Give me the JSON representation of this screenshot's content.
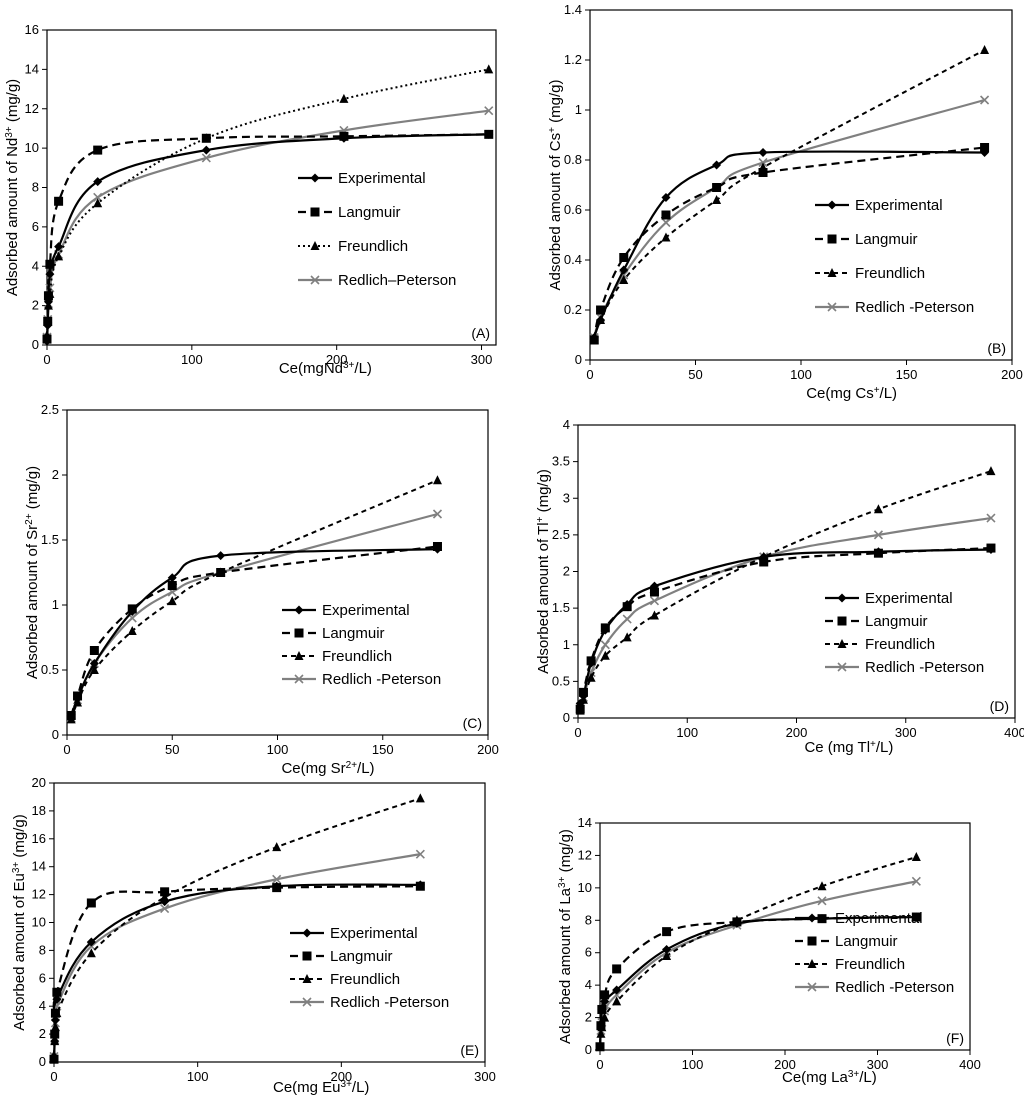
{
  "colors": {
    "experimental": "#000000",
    "langmuir": "#000000",
    "freundlich": "#000000",
    "redlich": "#808080"
  },
  "legend": [
    "Experimental",
    "Langmuir",
    "Freundlich",
    "Redlich–Peterson"
  ],
  "chart_data": [
    {
      "type": "line",
      "panel_label": "(A)",
      "xlabel": "Ce(mgNd3+/L)",
      "ylabel": "Adsorbed amount of Nd3+  (mg/g)",
      "xlim": [
        0,
        310
      ],
      "ylim": [
        0,
        16
      ],
      "xticks": [
        0,
        100,
        200,
        300
      ],
      "yticks": [
        0,
        2,
        4,
        6,
        8,
        10,
        12,
        14,
        16
      ],
      "legend_entries": [
        "Experimental",
        "Langmuir",
        "Freundlich",
        "Redlich–Peterson"
      ],
      "series": [
        {
          "name": "Experimental",
          "x": [
            0,
            0.5,
            1,
            2,
            8,
            35,
            110,
            205,
            305
          ],
          "y": [
            0.2,
            1.0,
            2.2,
            3.6,
            5.0,
            8.3,
            9.9,
            10.5,
            10.7
          ]
        },
        {
          "name": "Langmuir",
          "x": [
            0,
            0.5,
            1,
            2,
            8,
            35,
            110,
            205,
            305
          ],
          "y": [
            0.3,
            1.2,
            2.5,
            4.1,
            7.3,
            9.9,
            10.5,
            10.6,
            10.7
          ]
        },
        {
          "name": "Freundlich",
          "x": [
            0,
            0.5,
            1,
            2,
            8,
            35,
            110,
            205,
            305
          ],
          "y": [
            0.5,
            1.2,
            2.0,
            2.6,
            4.5,
            7.2,
            10.5,
            12.5,
            14.0
          ]
        },
        {
          "name": "Redlich–Peterson",
          "x": [
            0,
            0.5,
            1,
            2,
            8,
            35,
            110,
            205,
            305
          ],
          "y": [
            0.4,
            1.3,
            2.1,
            2.9,
            4.6,
            7.5,
            9.5,
            10.9,
            11.9
          ]
        }
      ]
    },
    {
      "type": "line",
      "panel_label": "(B)",
      "xlabel": "Ce(mg Cs+/L)",
      "ylabel": "Adsorbed amount of Cs+  (mg/g)",
      "xlim": [
        0,
        200
      ],
      "ylim": [
        0,
        1.4
      ],
      "xticks": [
        0,
        50,
        100,
        150,
        200
      ],
      "yticks": [
        0,
        0.2,
        0.4,
        0.6,
        0.8,
        1,
        1.2,
        1.4
      ],
      "legend_entries": [
        "Experimental",
        "Langmuir",
        "Freundlich",
        "Redlich -Peterson"
      ],
      "series": [
        {
          "name": "Experimental",
          "x": [
            2,
            5,
            16,
            36,
            60,
            82,
            187
          ],
          "y": [
            0.09,
            0.16,
            0.36,
            0.65,
            0.78,
            0.83,
            0.83
          ]
        },
        {
          "name": "Langmuir",
          "x": [
            2,
            5,
            16,
            36,
            60,
            82,
            187
          ],
          "y": [
            0.08,
            0.2,
            0.41,
            0.58,
            0.69,
            0.75,
            0.85
          ]
        },
        {
          "name": "Freundlich",
          "x": [
            2,
            5,
            16,
            36,
            60,
            82,
            187
          ],
          "y": [
            0.08,
            0.16,
            0.32,
            0.49,
            0.64,
            0.77,
            1.24
          ]
        },
        {
          "name": "Redlich -Peterson",
          "x": [
            2,
            5,
            16,
            36,
            60,
            82,
            187
          ],
          "y": [
            0.09,
            0.17,
            0.34,
            0.55,
            0.69,
            0.79,
            1.04
          ]
        }
      ]
    },
    {
      "type": "line",
      "panel_label": "(C)",
      "xlabel": "Ce(mg Sr2+/L)",
      "ylabel": "Adsorbed amount of Sr2+  (mg/g)",
      "xlim": [
        0,
        200
      ],
      "ylim": [
        0,
        2.5
      ],
      "xticks": [
        0,
        50,
        100,
        150,
        200
      ],
      "yticks": [
        0,
        0.5,
        1,
        1.5,
        2,
        2.5
      ],
      "legend_entries": [
        "Experimental",
        "Langmuir",
        "Freundlich",
        "Redlich -Peterson"
      ],
      "series": [
        {
          "name": "Experimental",
          "x": [
            2,
            5,
            13,
            31,
            50,
            73,
            176
          ],
          "y": [
            0.13,
            0.28,
            0.55,
            0.95,
            1.21,
            1.38,
            1.43
          ]
        },
        {
          "name": "Langmuir",
          "x": [
            2,
            5,
            13,
            31,
            50,
            73,
            176
          ],
          "y": [
            0.15,
            0.3,
            0.65,
            0.97,
            1.15,
            1.25,
            1.45
          ]
        },
        {
          "name": "Freundlich",
          "x": [
            2,
            5,
            13,
            31,
            50,
            73,
            176
          ],
          "y": [
            0.12,
            0.25,
            0.5,
            0.8,
            1.03,
            1.25,
            1.96
          ]
        },
        {
          "name": "Redlich -Peterson",
          "x": [
            2,
            5,
            13,
            31,
            50,
            73,
            176
          ],
          "y": [
            0.13,
            0.27,
            0.55,
            0.9,
            1.1,
            1.25,
            1.7
          ]
        }
      ]
    },
    {
      "type": "line",
      "panel_label": "(D)",
      "xlabel": "Ce (mg Tl+/L)",
      "ylabel": "Adsorbed amount of Tl+  (mg/g)",
      "xlim": [
        0,
        400
      ],
      "ylim": [
        0,
        4
      ],
      "xticks": [
        0,
        100,
        200,
        300,
        400
      ],
      "yticks": [
        0,
        0.5,
        1,
        1.5,
        2,
        2.5,
        3,
        3.5,
        4
      ],
      "legend_entries": [
        "Experimental",
        "Langmuir",
        "Freundlich",
        "Redlich -Peterson"
      ],
      "series": [
        {
          "name": "Experimental",
          "x": [
            2,
            5,
            12,
            25,
            45,
            70,
            170,
            275,
            378
          ],
          "y": [
            0.2,
            0.3,
            0.75,
            1.2,
            1.55,
            1.8,
            2.2,
            2.27,
            2.3
          ]
        },
        {
          "name": "Langmuir",
          "x": [
            2,
            5,
            12,
            25,
            45,
            70,
            170,
            275,
            378
          ],
          "y": [
            0.12,
            0.35,
            0.78,
            1.23,
            1.52,
            1.72,
            2.13,
            2.25,
            2.32
          ]
        },
        {
          "name": "Freundlich",
          "x": [
            2,
            5,
            12,
            25,
            45,
            70,
            170,
            275,
            378
          ],
          "y": [
            0.1,
            0.25,
            0.55,
            0.85,
            1.1,
            1.4,
            2.2,
            2.85,
            3.37
          ]
        },
        {
          "name": "Redlich -Peterson",
          "x": [
            2,
            5,
            12,
            25,
            45,
            70,
            170,
            275,
            378
          ],
          "y": [
            0.12,
            0.28,
            0.62,
            1.0,
            1.35,
            1.6,
            2.2,
            2.5,
            2.73
          ]
        }
      ]
    },
    {
      "type": "line",
      "panel_label": "(E)",
      "xlabel": "Ce(mg Eu3+/L)",
      "ylabel": "Adsorbed amount of Eu3+  (mg/g)",
      "xlim": [
        0,
        300
      ],
      "ylim": [
        0,
        20
      ],
      "xticks": [
        0,
        100,
        200,
        300
      ],
      "yticks": [
        0,
        2,
        4,
        6,
        8,
        10,
        12,
        14,
        16,
        18,
        20
      ],
      "legend_entries": [
        "Experimental",
        "Langmuir",
        "Freundlich",
        "Redlich -Peterson"
      ],
      "series": [
        {
          "name": "Experimental",
          "x": [
            0,
            0.5,
            1,
            2,
            26,
            77,
            155,
            255
          ],
          "y": [
            0.2,
            1.5,
            3.0,
            4.5,
            8.6,
            11.5,
            12.6,
            12.7
          ]
        },
        {
          "name": "Langmuir",
          "x": [
            0,
            0.5,
            1,
            2,
            26,
            77,
            155,
            255
          ],
          "y": [
            0.2,
            2.0,
            3.5,
            5.0,
            11.4,
            12.2,
            12.5,
            12.6
          ]
        },
        {
          "name": "Freundlich",
          "x": [
            0,
            0.5,
            1,
            2,
            26,
            77,
            155,
            255
          ],
          "y": [
            0.5,
            1.5,
            2.5,
            3.5,
            7.8,
            11.8,
            15.4,
            18.9
          ]
        },
        {
          "name": "Redlich -Peterson",
          "x": [
            0,
            0.5,
            1,
            2,
            26,
            77,
            155,
            255
          ],
          "y": [
            0.4,
            1.6,
            2.8,
            4.0,
            8.3,
            11.0,
            13.1,
            14.9
          ]
        }
      ]
    },
    {
      "type": "line",
      "panel_label": "(F)",
      "xlabel": "Ce(mg La3+/L)",
      "ylabel": "Adsorbed amount of La3+ (mg/g)",
      "xlim": [
        0,
        400
      ],
      "ylim": [
        0,
        14
      ],
      "xticks": [
        0,
        100,
        200,
        300,
        400
      ],
      "yticks": [
        0,
        2,
        4,
        6,
        8,
        10,
        12,
        14
      ],
      "legend_entries": [
        "Experimental",
        "Langmuir",
        "Freundlich",
        "Redlich -Peterson"
      ],
      "series": [
        {
          "name": "Experimental",
          "x": [
            0,
            1,
            2,
            5,
            18,
            72,
            148,
            240,
            342
          ],
          "y": [
            0.2,
            1.6,
            2.5,
            3.0,
            3.7,
            6.2,
            7.8,
            8.1,
            8.2
          ]
        },
        {
          "name": "Langmuir",
          "x": [
            0,
            1,
            2,
            5,
            18,
            72,
            148,
            240,
            342
          ],
          "y": [
            0.2,
            1.5,
            2.5,
            3.4,
            5.0,
            7.3,
            7.9,
            8.1,
            8.2
          ]
        },
        {
          "name": "Freundlich",
          "x": [
            0,
            1,
            2,
            5,
            18,
            72,
            148,
            240,
            342
          ],
          "y": [
            0.2,
            1.0,
            1.4,
            2.0,
            3.0,
            5.8,
            8.0,
            10.1,
            11.9
          ]
        },
        {
          "name": "Redlich -Peterson",
          "x": [
            0,
            1,
            2,
            5,
            18,
            72,
            148,
            240,
            342
          ],
          "y": [
            0.2,
            1.2,
            1.7,
            2.4,
            3.4,
            6.0,
            7.7,
            9.2,
            10.4
          ]
        }
      ]
    }
  ]
}
